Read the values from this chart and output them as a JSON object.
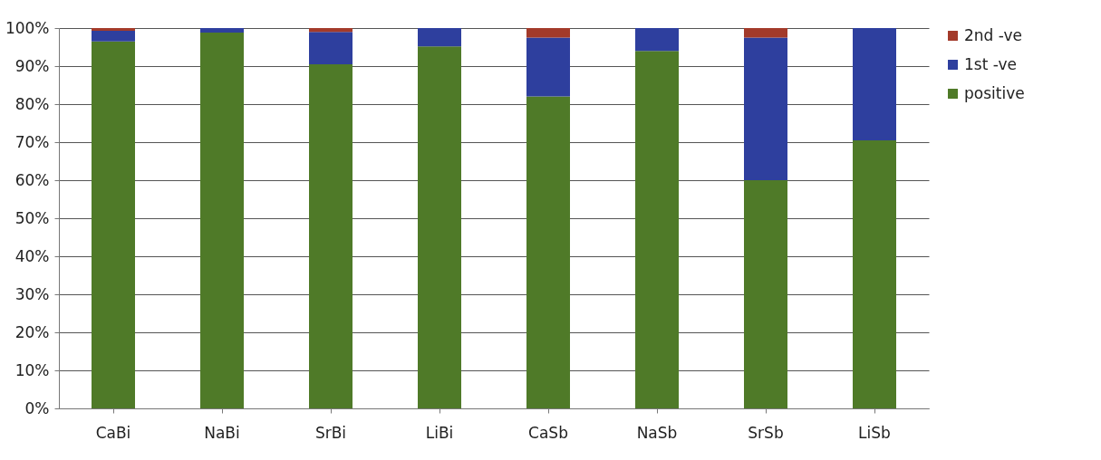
{
  "chart_data": {
    "type": "bar",
    "stacked": true,
    "categories": [
      "CaBi",
      "NaBi",
      "SrBi",
      "LiBi",
      "CaSb",
      "NaSb",
      "SrSb",
      "LiSb"
    ],
    "series": [
      {
        "name": "positive",
        "color": "#4f7a28",
        "values": [
          96.5,
          98.8,
          90.5,
          95.2,
          82,
          94,
          60,
          70.5
        ]
      },
      {
        "name": "1st -ve",
        "color": "#2e3f9e",
        "values": [
          2.8,
          1.2,
          8.5,
          4.8,
          15.5,
          6,
          37.5,
          29.5
        ]
      },
      {
        "name": "2nd -ve",
        "color": "#a33a2a",
        "values": [
          0.7,
          0,
          1,
          0,
          2.5,
          0,
          2.5,
          0
        ]
      }
    ],
    "ylim": [
      0,
      100
    ],
    "yticks": [
      {
        "value": 0,
        "label": "0%"
      },
      {
        "value": 10,
        "label": "10%"
      },
      {
        "value": 20,
        "label": "20%"
      },
      {
        "value": 30,
        "label": "30%"
      },
      {
        "value": 40,
        "label": "40%"
      },
      {
        "value": 50,
        "label": "50%"
      },
      {
        "value": 60,
        "label": "60%"
      },
      {
        "value": 70,
        "label": "70%"
      },
      {
        "value": 80,
        "label": "80%"
      },
      {
        "value": 90,
        "label": "90%"
      },
      {
        "value": 100,
        "label": "100%"
      }
    ],
    "grid": "y",
    "legend": "right"
  }
}
